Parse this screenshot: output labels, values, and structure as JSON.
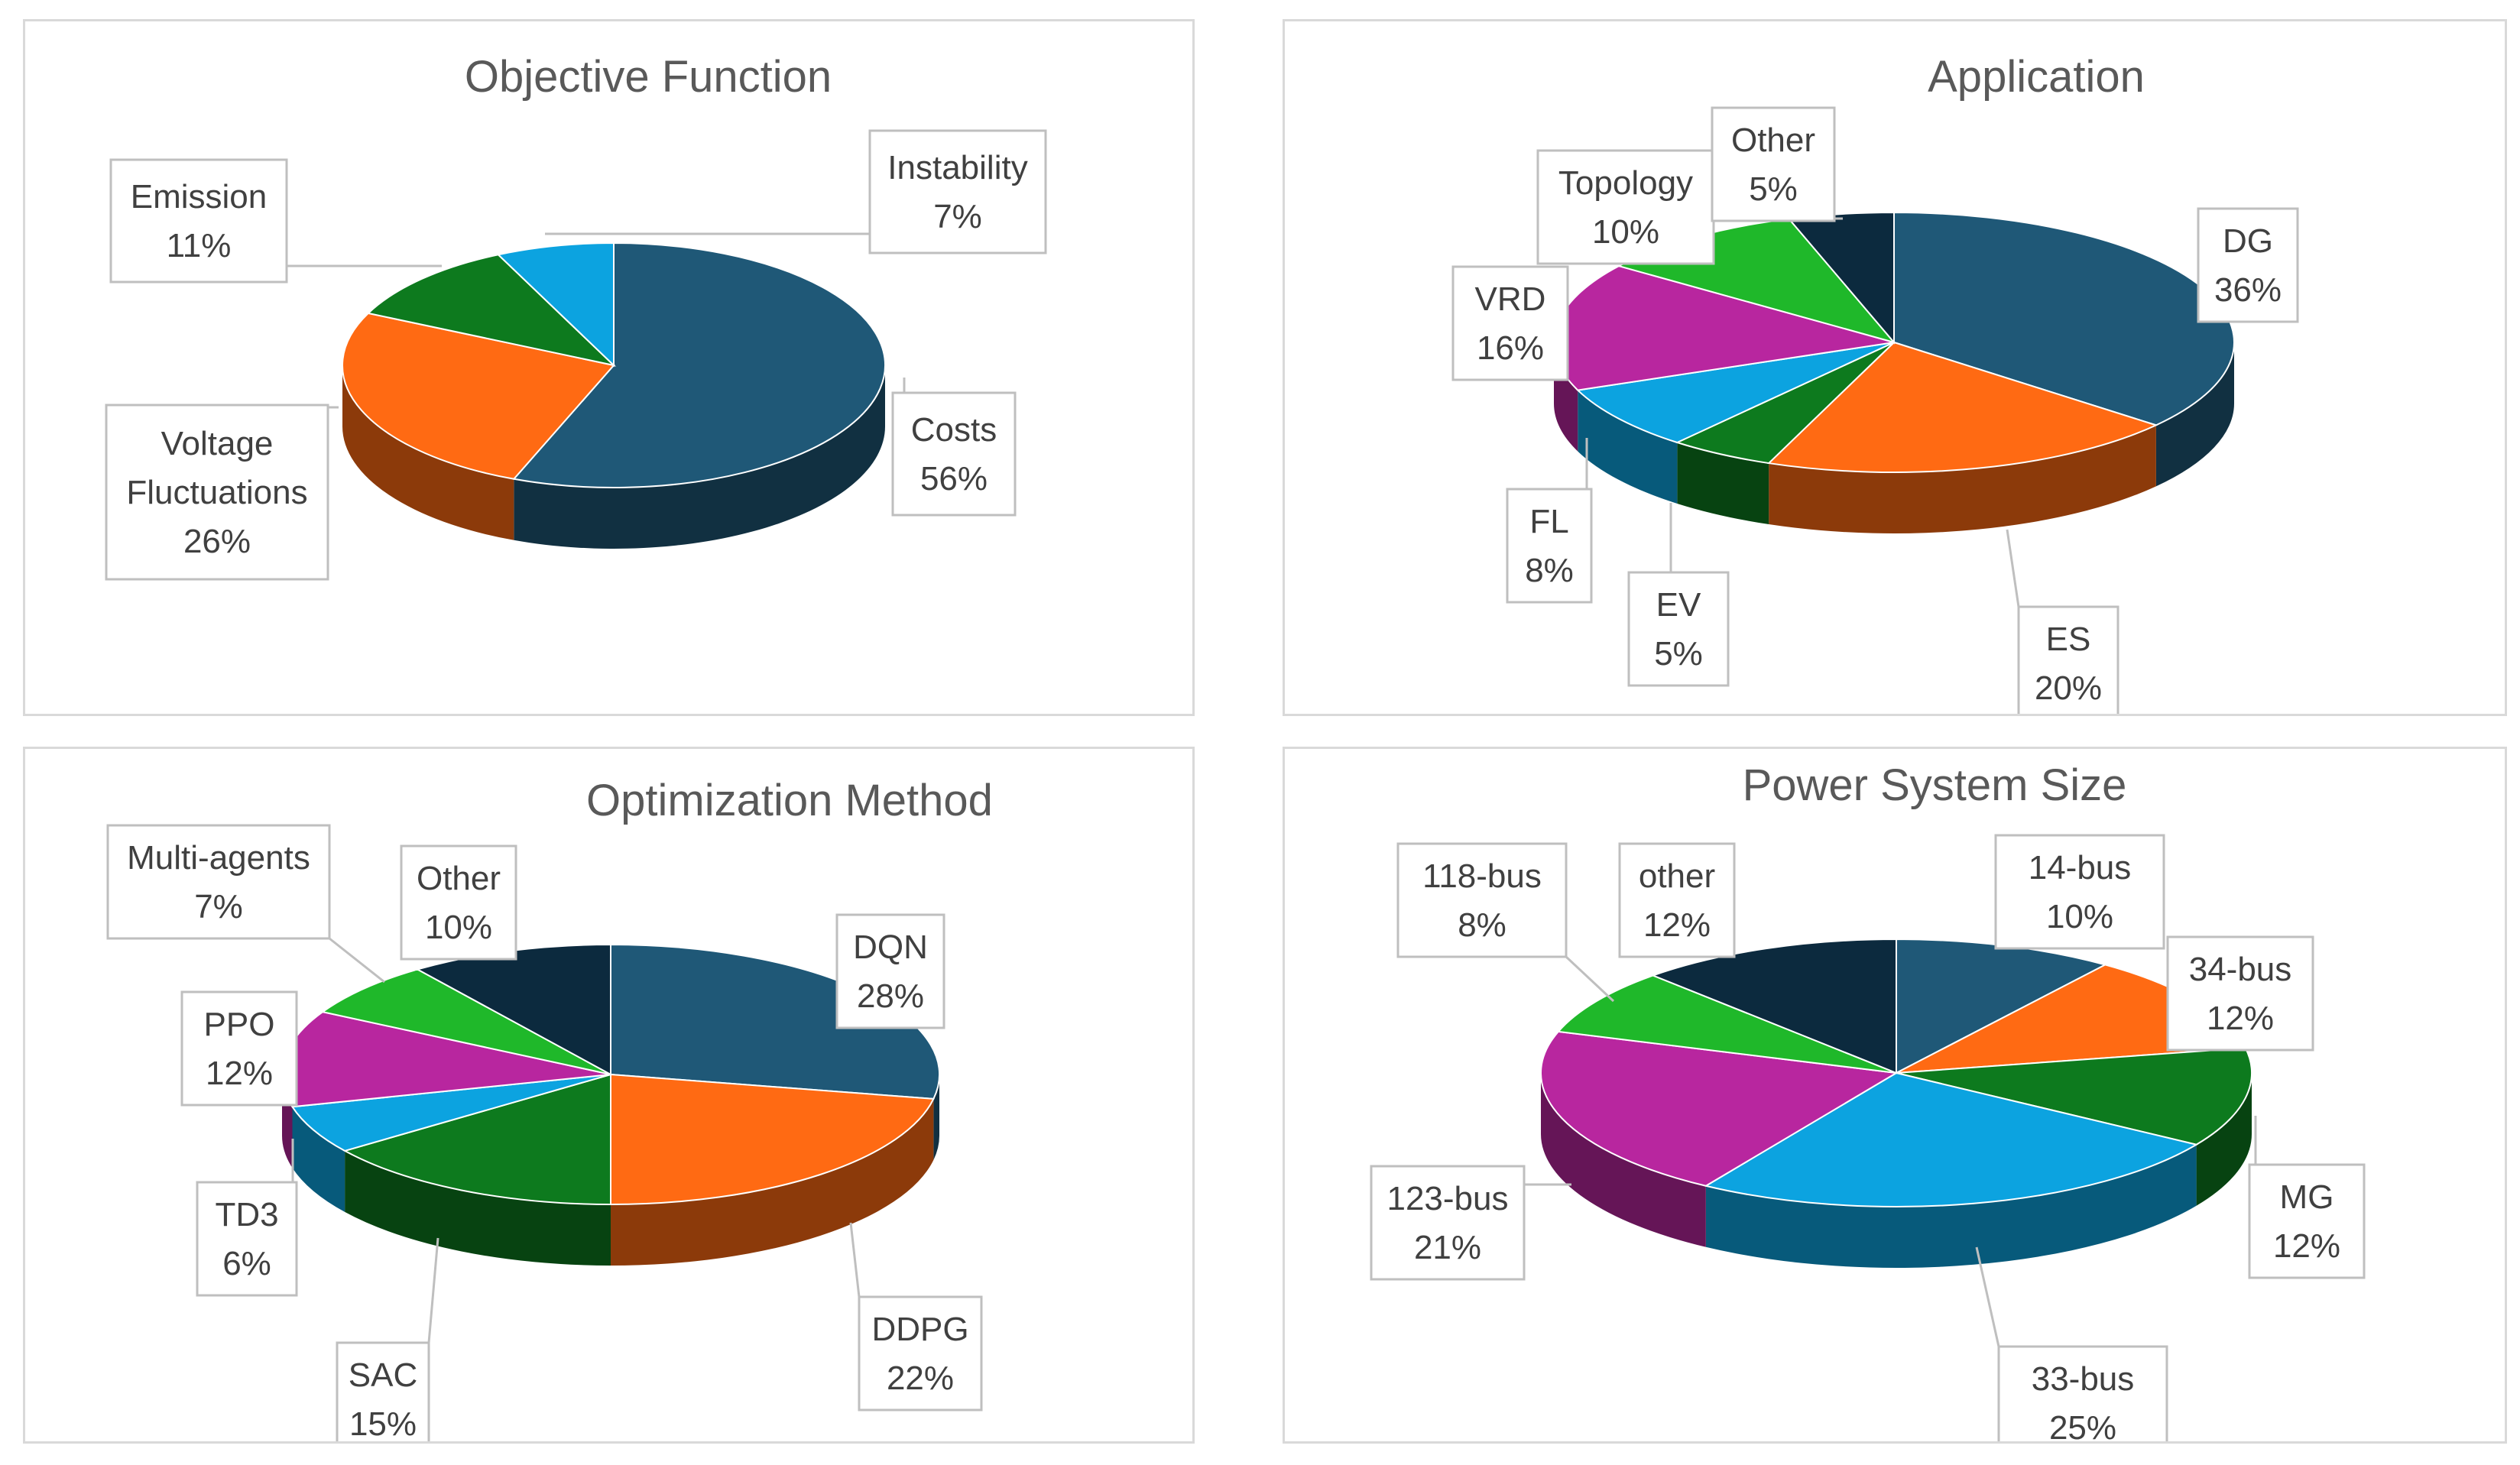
{
  "chart_data": [
    {
      "type": "pie",
      "title": "Objective Function",
      "slices": [
        {
          "name": "Costs",
          "pct": "56%",
          "value": 56,
          "color": "#1f5877"
        },
        {
          "name": "Voltage Fluctuations",
          "pct": "26%",
          "value": 26,
          "color": "#ff6a13"
        },
        {
          "name": "Emission",
          "pct": "11%",
          "value": 11,
          "color": "#0d7a1e"
        },
        {
          "name": "Instability",
          "pct": "7%",
          "value": 7,
          "color": "#0ca3e0"
        }
      ]
    },
    {
      "type": "pie",
      "title": "Application",
      "slices": [
        {
          "name": "DG",
          "pct": "36%",
          "value": 36,
          "color": "#1f5877"
        },
        {
          "name": "ES",
          "pct": "20%",
          "value": 20,
          "color": "#ff6a13"
        },
        {
          "name": "EV",
          "pct": "5%",
          "value": 5,
          "color": "#0d7a1e"
        },
        {
          "name": "FL",
          "pct": "8%",
          "value": 8,
          "color": "#0ca3e0"
        },
        {
          "name": "VRD",
          "pct": "16%",
          "value": 16,
          "color": "#b8269f"
        },
        {
          "name": "Topology",
          "pct": "10%",
          "value": 10,
          "color": "#1fb82a"
        },
        {
          "name": "Other",
          "pct": "5%",
          "value": 5,
          "color": "#0c2a3e"
        }
      ]
    },
    {
      "type": "pie",
      "title": "Optimization Method",
      "slices": [
        {
          "name": "DQN",
          "pct": "28%",
          "value": 28,
          "color": "#1f5877"
        },
        {
          "name": "DDPG",
          "pct": "22%",
          "value": 22,
          "color": "#ff6a13"
        },
        {
          "name": "SAC",
          "pct": "15%",
          "value": 15,
          "color": "#0d7a1e"
        },
        {
          "name": "TD3",
          "pct": "6%",
          "value": 6,
          "color": "#0ca3e0"
        },
        {
          "name": "PPO",
          "pct": "12%",
          "value": 12,
          "color": "#b8269f"
        },
        {
          "name": "Multi-agents",
          "pct": "7%",
          "value": 7,
          "color": "#1fb82a"
        },
        {
          "name": "Other",
          "pct": "10%",
          "value": 10,
          "color": "#0c2a3e"
        }
      ]
    },
    {
      "type": "pie",
      "title": "Power System Size",
      "slices": [
        {
          "name": "14-bus",
          "pct": "10%",
          "value": 10,
          "color": "#1f5877"
        },
        {
          "name": "34-bus",
          "pct": "12%",
          "value": 12,
          "color": "#ff6a13"
        },
        {
          "name": "MG",
          "pct": "12%",
          "value": 12,
          "color": "#0d7a1e"
        },
        {
          "name": "33-bus",
          "pct": "25%",
          "value": 25,
          "color": "#0ca3e0"
        },
        {
          "name": "123-bus",
          "pct": "21%",
          "value": 21,
          "color": "#b8269f"
        },
        {
          "name": "118-bus",
          "pct": "8%",
          "value": 8,
          "color": "#1fb82a"
        },
        {
          "name": "other",
          "pct": "12%",
          "value": 12,
          "color": "#0c2a3e"
        }
      ]
    }
  ]
}
